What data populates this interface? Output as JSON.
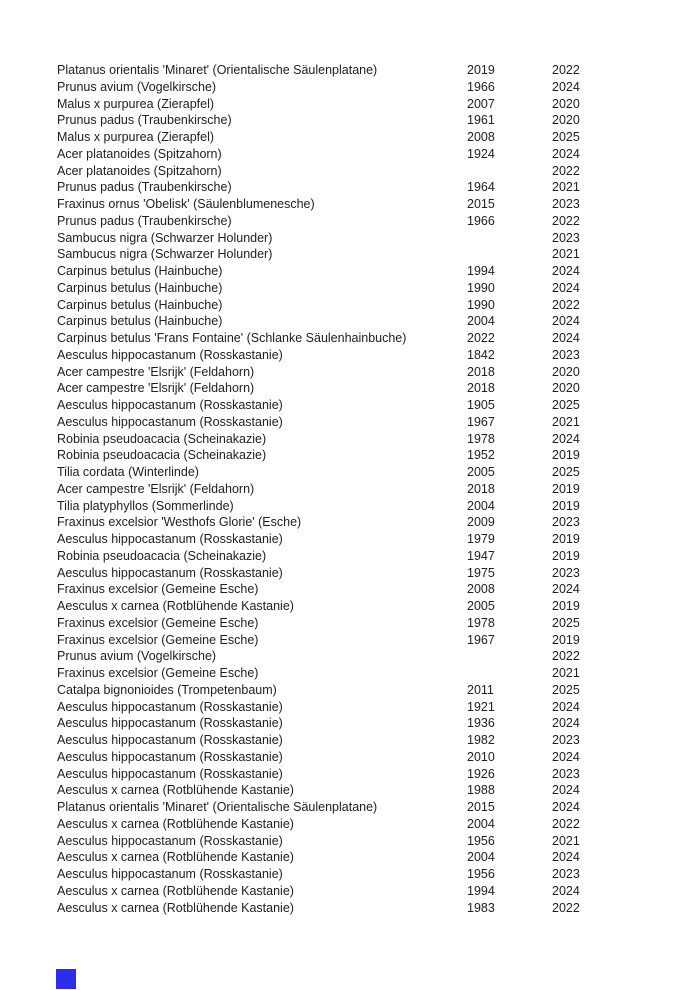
{
  "page": {
    "background_color": "#ffffff",
    "text_color": "#212121"
  },
  "marker": {
    "color": "#2d2df0"
  },
  "table": {
    "rows": [
      {
        "name": "Platanus orientalis 'Minaret' (Orientalische Säulenplatane)",
        "year1": "2019",
        "year2": "2022"
      },
      {
        "name": "Prunus avium (Vogelkirsche)",
        "year1": "1966",
        "year2": "2024"
      },
      {
        "name": "Malus x purpurea (Zierapfel)",
        "year1": "2007",
        "year2": "2020"
      },
      {
        "name": "Prunus padus (Traubenkirsche)",
        "year1": "1961",
        "year2": "2020"
      },
      {
        "name": "Malus x purpurea (Zierapfel)",
        "year1": "2008",
        "year2": "2025"
      },
      {
        "name": "Acer platanoides (Spitzahorn)",
        "year1": "1924",
        "year2": "2024"
      },
      {
        "name": "Acer platanoides (Spitzahorn)",
        "year1": "",
        "year2": "2022"
      },
      {
        "name": "Prunus padus (Traubenkirsche)",
        "year1": "1964",
        "year2": "2021"
      },
      {
        "name": "Fraxinus ornus 'Obelisk' (Säulenblumenesche)",
        "year1": "2015",
        "year2": "2023"
      },
      {
        "name": "Prunus padus (Traubenkirsche)",
        "year1": "1966",
        "year2": "2022"
      },
      {
        "name": "Sambucus nigra (Schwarzer Holunder)",
        "year1": "",
        "year2": "2023"
      },
      {
        "name": "Sambucus nigra (Schwarzer Holunder)",
        "year1": "",
        "year2": "2021"
      },
      {
        "name": "Carpinus betulus (Hainbuche)",
        "year1": "1994",
        "year2": "2024"
      },
      {
        "name": "Carpinus betulus (Hainbuche)",
        "year1": "1990",
        "year2": "2024"
      },
      {
        "name": "Carpinus betulus (Hainbuche)",
        "year1": "1990",
        "year2": "2022"
      },
      {
        "name": "Carpinus betulus (Hainbuche)",
        "year1": "2004",
        "year2": "2024"
      },
      {
        "name": "Carpinus betulus 'Frans Fontaine' (Schlanke Säulenhainbuche)",
        "year1": "2022",
        "year2": "2024"
      },
      {
        "name": "Aesculus hippocastanum (Rosskastanie)",
        "year1": "1842",
        "year2": "2023"
      },
      {
        "name": "Acer campestre 'Elsrijk' (Feldahorn)",
        "year1": "2018",
        "year2": "2020"
      },
      {
        "name": "Acer campestre 'Elsrijk' (Feldahorn)",
        "year1": "2018",
        "year2": "2020"
      },
      {
        "name": "Aesculus hippocastanum (Rosskastanie)",
        "year1": "1905",
        "year2": "2025"
      },
      {
        "name": "Aesculus hippocastanum (Rosskastanie)",
        "year1": "1967",
        "year2": "2021"
      },
      {
        "name": "Robinia pseudoacacia (Scheinakazie)",
        "year1": "1978",
        "year2": "2024"
      },
      {
        "name": "Robinia pseudoacacia (Scheinakazie)",
        "year1": "1952",
        "year2": "2019"
      },
      {
        "name": "Tilia cordata (Winterlinde)",
        "year1": "2005",
        "year2": "2025"
      },
      {
        "name": "Acer campestre 'Elsrijk' (Feldahorn)",
        "year1": "2018",
        "year2": "2019"
      },
      {
        "name": "Tilia platyphyllos (Sommerlinde)",
        "year1": "2004",
        "year2": "2019"
      },
      {
        "name": "Fraxinus excelsior 'Westhofs Glorie' (Esche)",
        "year1": "2009",
        "year2": "2023"
      },
      {
        "name": "Aesculus hippocastanum (Rosskastanie)",
        "year1": "1979",
        "year2": "2019"
      },
      {
        "name": "Robinia pseudoacacia (Scheinakazie)",
        "year1": "1947",
        "year2": "2019"
      },
      {
        "name": "Aesculus hippocastanum (Rosskastanie)",
        "year1": "1975",
        "year2": "2023"
      },
      {
        "name": "Fraxinus excelsior (Gemeine Esche)",
        "year1": "2008",
        "year2": "2024"
      },
      {
        "name": "Aesculus x carnea (Rotblühende Kastanie)",
        "year1": "2005",
        "year2": "2019"
      },
      {
        "name": "Fraxinus excelsior (Gemeine Esche)",
        "year1": "1978",
        "year2": "2025"
      },
      {
        "name": "Fraxinus excelsior (Gemeine Esche)",
        "year1": "1967",
        "year2": "2019"
      },
      {
        "name": "Prunus avium (Vogelkirsche)",
        "year1": "",
        "year2": "2022"
      },
      {
        "name": "Fraxinus excelsior (Gemeine Esche)",
        "year1": "",
        "year2": "2021"
      },
      {
        "name": "Catalpa bignonioides (Trompetenbaum)",
        "year1": "2011",
        "year2": "2025"
      },
      {
        "name": "Aesculus hippocastanum (Rosskastanie)",
        "year1": "1921",
        "year2": "2024"
      },
      {
        "name": "Aesculus hippocastanum (Rosskastanie)",
        "year1": "1936",
        "year2": "2024"
      },
      {
        "name": "Aesculus hippocastanum (Rosskastanie)",
        "year1": "1982",
        "year2": "2023"
      },
      {
        "name": "Aesculus hippocastanum (Rosskastanie)",
        "year1": "2010",
        "year2": "2024"
      },
      {
        "name": "Aesculus hippocastanum (Rosskastanie)",
        "year1": "1926",
        "year2": "2023"
      },
      {
        "name": "Aesculus x carnea (Rotblühende Kastanie)",
        "year1": "1988",
        "year2": "2024"
      },
      {
        "name": "Platanus orientalis 'Minaret' (Orientalische Säulenplatane)",
        "year1": "2015",
        "year2": "2024"
      },
      {
        "name": "Aesculus x carnea (Rotblühende Kastanie)",
        "year1": "2004",
        "year2": "2022"
      },
      {
        "name": "Aesculus hippocastanum (Rosskastanie)",
        "year1": "1956",
        "year2": "2021"
      },
      {
        "name": "Aesculus x carnea (Rotblühende Kastanie)",
        "year1": "2004",
        "year2": "2024"
      },
      {
        "name": "Aesculus hippocastanum (Rosskastanie)",
        "year1": "1956",
        "year2": "2023"
      },
      {
        "name": "Aesculus x carnea (Rotblühende Kastanie)",
        "year1": "1994",
        "year2": "2024"
      },
      {
        "name": "Aesculus x carnea (Rotblühende Kastanie)",
        "year1": "1983",
        "year2": "2022"
      }
    ]
  }
}
